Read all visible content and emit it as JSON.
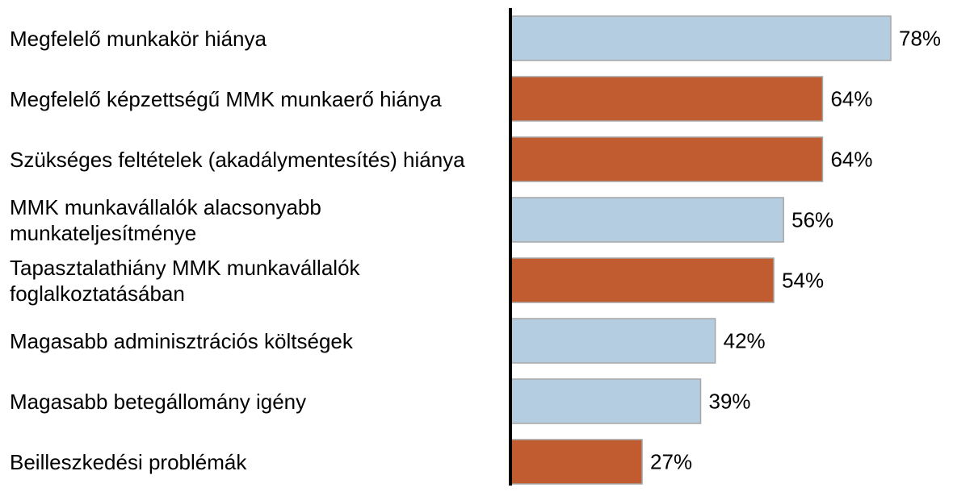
{
  "chart_data": {
    "type": "barh",
    "categories": [
      "Megfelelő munkakör hiánya",
      "Megfelelő képzettségű MMK munkaerő hiánya",
      "Szükséges feltételek (akadálymentesítés) hiánya",
      "MMK munkavállalók alacsonyabb munkateljesítménye",
      "Tapasztalathiány MMK munkavállalók foglalkoztatásában",
      "Magasabb adminisztrációs költségek",
      "Magasabb betegállomány igény",
      "Beilleszkedési problémák"
    ],
    "values": [
      78,
      64,
      64,
      56,
      54,
      42,
      39,
      27
    ],
    "value_labels": [
      "78%",
      "64%",
      "64%",
      "56%",
      "54%",
      "42%",
      "39%",
      "27%"
    ],
    "colors": [
      "#b4cde0",
      "#c05c30",
      "#c05c30",
      "#b4cde0",
      "#c05c30",
      "#b4cde0",
      "#b4cde0",
      "#c05c30"
    ]
  }
}
